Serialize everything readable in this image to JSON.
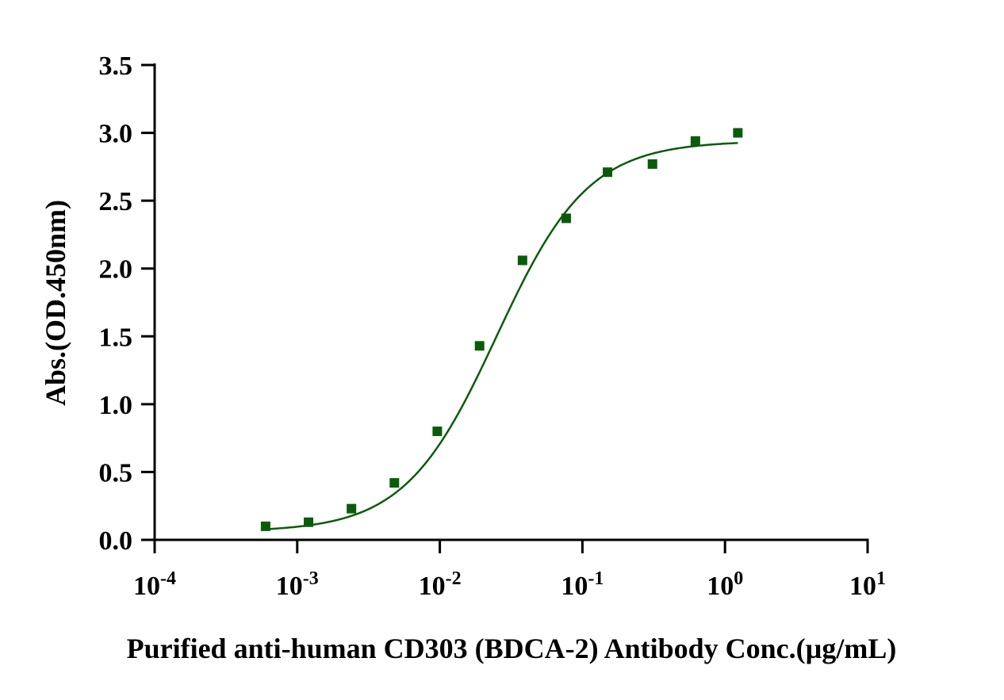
{
  "chart_data": {
    "type": "scatter",
    "title": "",
    "xlabel": "Purified anti-human CD303 (BDCA-2) Antibody  Conc.(µg/mL)",
    "ylabel": "Abs.(OD.450nm)",
    "x_scale": "log",
    "xlim": [
      0.0001,
      10
    ],
    "ylim": [
      0,
      3.5
    ],
    "x_ticks": [
      {
        "base": "10",
        "exp": "-4"
      },
      {
        "base": "10",
        "exp": "-3"
      },
      {
        "base": "10",
        "exp": "-2"
      },
      {
        "base": "10",
        "exp": "-1"
      },
      {
        "base": "10",
        "exp": "0"
      },
      {
        "base": "10",
        "exp": "1"
      }
    ],
    "y_ticks": [
      "0.0",
      "0.5",
      "1.0",
      "1.5",
      "2.0",
      "2.5",
      "3.0",
      "3.5"
    ],
    "grid": false,
    "legend": "none",
    "series": [
      {
        "marker": "square",
        "color": "#0a5c0a",
        "x": [
          0.0006,
          0.0012,
          0.0024,
          0.0048,
          0.0096,
          0.019,
          0.038,
          0.077,
          0.15,
          0.31,
          0.62,
          1.23
        ],
        "y": [
          0.1,
          0.13,
          0.23,
          0.42,
          0.8,
          1.43,
          2.06,
          2.37,
          2.71,
          2.77,
          2.94,
          3.0
        ]
      }
    ],
    "fit_curve": {
      "type": "four-parameter logistic",
      "color": "#0a5c0a"
    }
  }
}
